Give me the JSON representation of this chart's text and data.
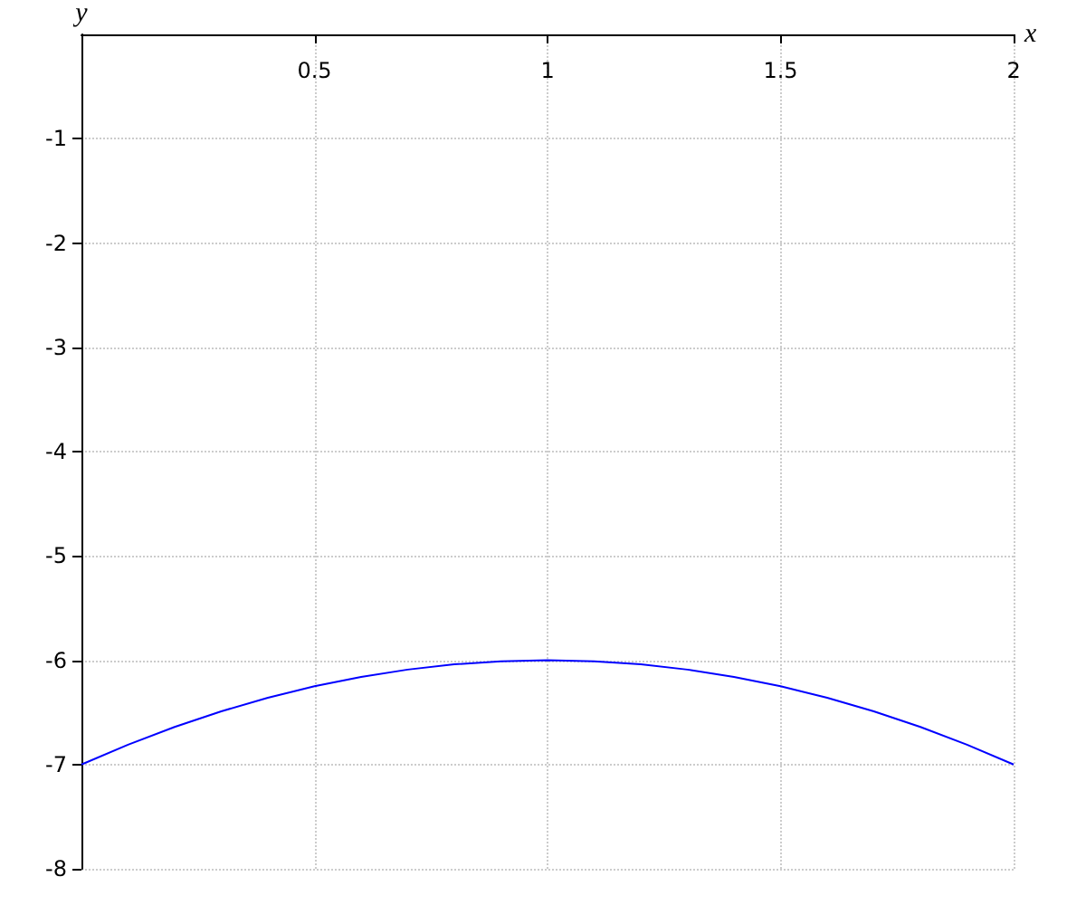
{
  "chart_data": {
    "type": "line",
    "xlabel": "x",
    "ylabel": "y",
    "x": [
      0,
      0.1,
      0.2,
      0.3,
      0.4,
      0.5,
      0.6,
      0.7,
      0.8,
      0.9,
      1,
      1.1,
      1.2,
      1.3,
      1.4,
      1.5,
      1.6,
      1.7,
      1.8,
      1.9,
      2
    ],
    "series": [
      {
        "color": "#0000ff",
        "values": [
          -7,
          -6.81,
          -6.64,
          -6.49,
          -6.36,
          -6.25,
          -6.16,
          -6.09,
          -6.04,
          -6.01,
          -6,
          -6.01,
          -6.04,
          -6.09,
          -6.16,
          -6.25,
          -6.36,
          -6.49,
          -6.64,
          -6.81,
          -7
        ]
      }
    ],
    "xlim": [
      0,
      2
    ],
    "xticks": [
      0.5,
      1,
      1.5,
      2
    ],
    "ylim": [
      -8,
      0
    ],
    "yticks": [
      -8,
      -7,
      -6,
      -5,
      -4,
      -3,
      -2,
      -1
    ],
    "grid": true,
    "marker": "none",
    "line_style": "solid"
  }
}
